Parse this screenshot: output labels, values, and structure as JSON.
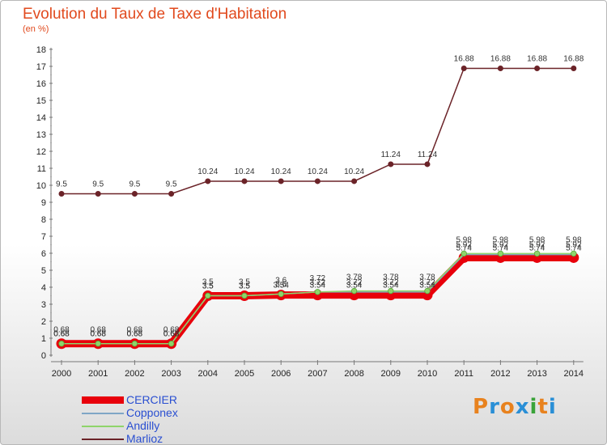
{
  "title": "Evolution du Taux de Taxe d'Habitation",
  "subtitle": "(en %)",
  "logo": {
    "text": "Proxiti",
    "letters": [
      "P",
      "r",
      "o",
      "x",
      "i",
      "t",
      "i"
    ],
    "colors": [
      "#e8821e",
      "#2a8fd6",
      "#e8821e",
      "#2a8fd6",
      "#3aa33a",
      "#e8821e",
      "#2a8fd6"
    ]
  },
  "chart_data": {
    "type": "line",
    "title": "Evolution du Taux de Taxe d'Habitation",
    "ylabel": "(en %)",
    "xlabel": "",
    "ylim": [
      0,
      18
    ],
    "yticks": [
      "0",
      "1",
      "2",
      "3",
      "4",
      "5",
      "6",
      "7",
      "8",
      "9",
      "10",
      "11",
      "12",
      "13",
      "14",
      "15",
      "16",
      "17",
      "18"
    ],
    "categories": [
      "2000",
      "2001",
      "2002",
      "2003",
      "2004",
      "2005",
      "2006",
      "2007",
      "2008",
      "2009",
      "2010",
      "2011",
      "2012",
      "2013",
      "2014"
    ],
    "series": [
      {
        "name": "CERCIER",
        "color": "#e8000b",
        "values": [
          0.68,
          0.68,
          0.68,
          0.68,
          3.5,
          3.5,
          3.54,
          3.54,
          3.54,
          3.54,
          3.54,
          5.74,
          5.74,
          5.74,
          5.74
        ],
        "labels": [
          "0.68",
          "0.68",
          "0.68",
          "0.68",
          "3.5",
          "3.5",
          "3.54",
          "3.54",
          "3.54",
          "3.54",
          "3.54",
          "5.74",
          "5.74",
          "5.74",
          "5.74"
        ]
      },
      {
        "name": "Copponex",
        "color": "#7fa6c6",
        "values": [
          0.68,
          0.68,
          0.68,
          0.68,
          3.5,
          3.5,
          3.6,
          3.72,
          3.72,
          3.72,
          3.72,
          5.92,
          5.92,
          5.92,
          5.92
        ],
        "labels": [
          "0.68",
          "0.68",
          "0.68",
          "0.68",
          "3.5",
          "3.5",
          "3.6",
          "3.72",
          "3.72",
          "3.72",
          "3.72",
          "5.92",
          "5.92",
          "5.92",
          "5.92"
        ]
      },
      {
        "name": "Andilly",
        "color": "#8fd46a",
        "values": [
          0.68,
          0.68,
          0.68,
          0.68,
          3.5,
          3.5,
          3.6,
          3.72,
          3.78,
          3.78,
          3.78,
          5.98,
          5.98,
          5.98,
          5.98
        ],
        "labels": [
          "0.68",
          "0.68",
          "0.68",
          "0.68",
          "3.5",
          "3.5",
          "3.6",
          "3.72",
          "3.78",
          "3.78",
          "3.78",
          "5.98",
          "5.98",
          "5.98",
          "5.98"
        ]
      },
      {
        "name": "Marlioz",
        "color": "#6b2328",
        "values": [
          9.5,
          9.5,
          9.5,
          9.5,
          10.24,
          10.24,
          10.24,
          10.24,
          10.24,
          11.24,
          11.24,
          16.88,
          16.88,
          16.88,
          16.88
        ],
        "labels": [
          "9.5",
          "9.5",
          "9.5",
          "9.5",
          "10.24",
          "10.24",
          "10.24",
          "10.24",
          "10.24",
          "11.24",
          "11.24",
          "16.88",
          "16.88",
          "16.88",
          "16.88"
        ]
      }
    ],
    "legend": [
      "CERCIER",
      "Copponex",
      "Andilly",
      "Marlioz"
    ],
    "legend_position": "bottom-left"
  }
}
